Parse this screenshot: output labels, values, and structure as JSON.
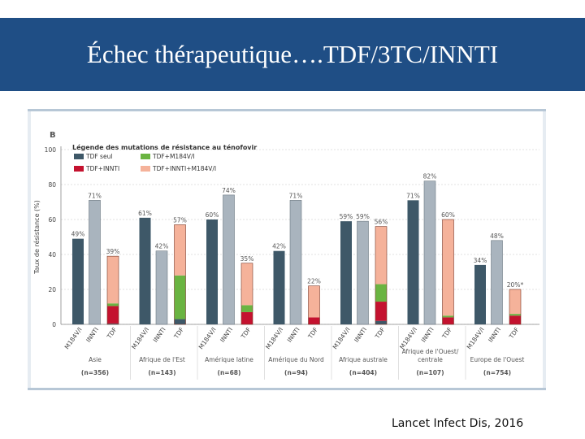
{
  "slide": {
    "title": "Échec thérapeutique….TDF/3TC/INNTI",
    "citation": "Lancet Infect Dis, 2016"
  },
  "colors": {
    "header_bg": "#1f4e85",
    "tdf_seul": "#3e5868",
    "tdf_m184": "#6ab441",
    "tdf_innti": "#c4122f",
    "tdf_innti_m184": "#f5b29a",
    "grey_bar": "#a9b4be"
  },
  "chart_data": {
    "type": "bar",
    "panel_label": "B",
    "ylabel": "Taux de résistance (%)",
    "ylim": [
      0,
      100
    ],
    "yticks": [
      0,
      20,
      40,
      60,
      80,
      100
    ],
    "legend_title": "Légende des mutations de résistance au ténofovir",
    "legend": [
      {
        "key": "tdf_seul",
        "label": "TDF seul"
      },
      {
        "key": "tdf_m184",
        "label": "TDF+M184V/I"
      },
      {
        "key": "tdf_innti",
        "label": "TDF+INNTI"
      },
      {
        "key": "tdf_innti_m184",
        "label": "TDF+INNTI+M184V/I"
      }
    ],
    "bar_labels": [
      "M184V/I",
      "INNTI",
      "TDF"
    ],
    "groups": [
      {
        "region": "Asie",
        "n": "(n=356)",
        "m184": 49,
        "m184_label": "49%",
        "innti": 71,
        "innti_label": "71%",
        "tdf_label": "39%",
        "tdf": {
          "tdf_seul": 0.5,
          "tdf_innti": 10,
          "tdf_m184": 1.5,
          "tdf_innti_m184": 27
        }
      },
      {
        "region": "Afrique de l'Est",
        "n": "(n=143)",
        "m184": 61,
        "m184_label": "61%",
        "innti": 42,
        "innti_label": "42%",
        "tdf_label": "57%",
        "tdf": {
          "tdf_seul": 3,
          "tdf_innti": 0,
          "tdf_m184": 25,
          "tdf_innti_m184": 29
        }
      },
      {
        "region": "Amérique latine",
        "n": "(n=68)",
        "m184": 60,
        "m184_label": "60%",
        "innti": 74,
        "innti_label": "74%",
        "tdf_label": "35%",
        "tdf": {
          "tdf_seul": 0,
          "tdf_innti": 7,
          "tdf_m184": 4,
          "tdf_innti_m184": 24
        }
      },
      {
        "region": "Amérique du Nord",
        "n": "(n=94)",
        "m184": 42,
        "m184_label": "42%",
        "innti": 71,
        "innti_label": "71%",
        "tdf_label": "22%",
        "tdf": {
          "tdf_seul": 0,
          "tdf_innti": 4,
          "tdf_m184": 0,
          "tdf_innti_m184": 18
        }
      },
      {
        "region": "Afrique australe",
        "n": "(n=404)",
        "m184": 59,
        "m184_label": "59%",
        "innti": 59,
        "innti_label": "59%",
        "tdf_label": "56%",
        "tdf": {
          "tdf_seul": 2,
          "tdf_innti": 11,
          "tdf_m184": 10,
          "tdf_innti_m184": 33
        }
      },
      {
        "region": "Afrique de l'Ouest/centrale",
        "n": "(n=107)",
        "m184": 71,
        "m184_label": "71%",
        "innti": 82,
        "innti_label": "82%",
        "tdf_label": "60%",
        "tdf": {
          "tdf_seul": 0,
          "tdf_innti": 4,
          "tdf_m184": 1,
          "tdf_innti_m184": 55
        }
      },
      {
        "region": "Europe de l'Ouest",
        "n": "(n=754)",
        "m184": 34,
        "m184_label": "34%",
        "innti": 48,
        "innti_label": "48%",
        "tdf_label": "20%*",
        "tdf": {
          "tdf_seul": 0,
          "tdf_innti": 5,
          "tdf_m184": 1,
          "tdf_innti_m184": 14
        }
      }
    ]
  }
}
